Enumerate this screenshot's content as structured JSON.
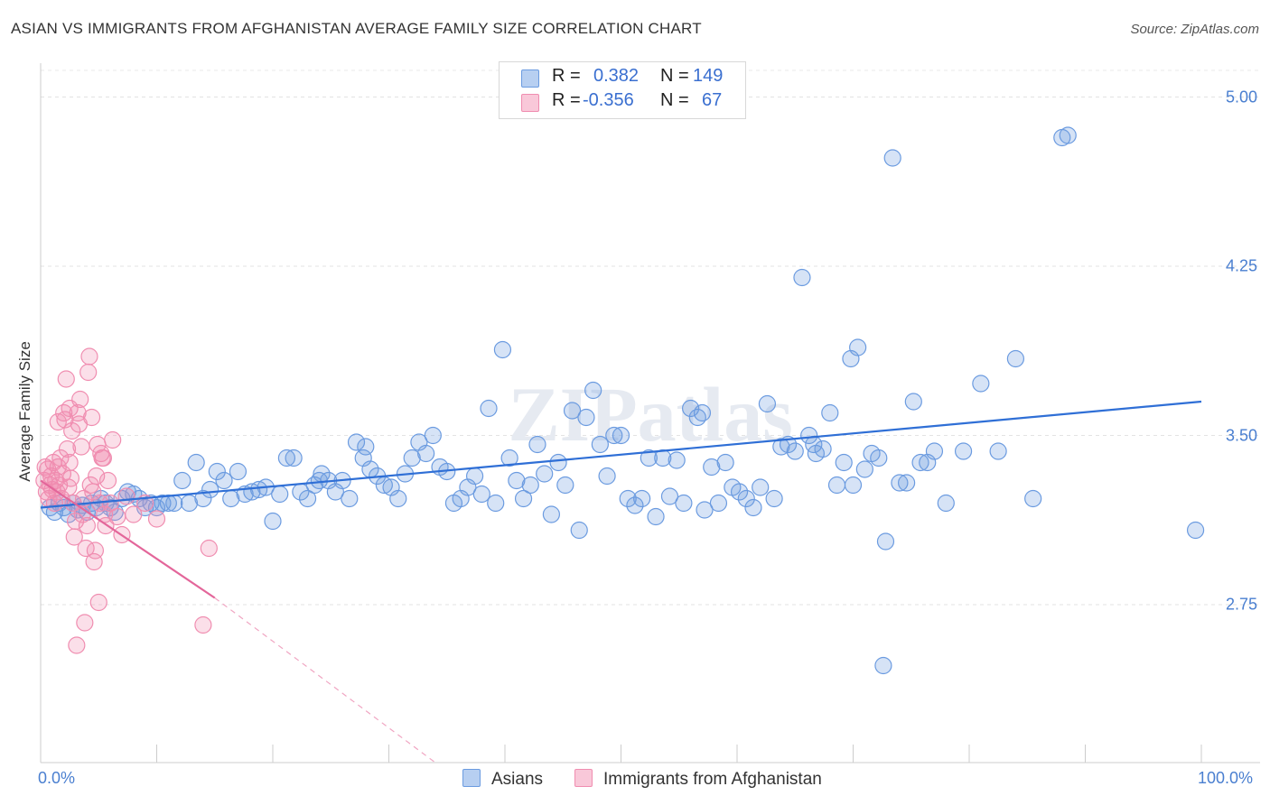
{
  "title": "ASIAN VS IMMIGRANTS FROM AFGHANISTAN AVERAGE FAMILY SIZE CORRELATION CHART",
  "source": "Source: ZipAtlas.com",
  "watermark": "ZIPatlas",
  "chart_data": {
    "type": "scatter",
    "ylabel": "Average Family Size",
    "xlim": [
      0,
      100
    ],
    "ylim": [
      2.05,
      5.15
    ],
    "x_tick_labels": [
      "0.0%",
      "100.0%"
    ],
    "y_ticks": [
      2.75,
      3.5,
      4.25,
      5.0
    ],
    "y_tick_labels": [
      "2.75",
      "3.50",
      "4.25",
      "5.00"
    ],
    "grid": true,
    "legend_position": "bottom",
    "stats": [
      {
        "r_label": "R =",
        "r": "0.382",
        "n_label": "N =",
        "n": "149"
      },
      {
        "r_label": "R =",
        "r": "-0.356",
        "n_label": "N =",
        "n": "67"
      }
    ],
    "series": [
      {
        "name": "Asians",
        "color": "#6b9be0",
        "trend": {
          "x": [
            0,
            100
          ],
          "y": [
            3.18,
            3.65
          ]
        },
        "points": [
          [
            0.8,
            3.18
          ],
          [
            1.2,
            3.16
          ],
          [
            1.6,
            3.2
          ],
          [
            2.0,
            3.18
          ],
          [
            2.4,
            3.15
          ],
          [
            2.8,
            3.2
          ],
          [
            3.2,
            3.17
          ],
          [
            3.6,
            3.19
          ],
          [
            4.0,
            3.16
          ],
          [
            4.4,
            3.2
          ],
          [
            4.8,
            3.18
          ],
          [
            5.2,
            3.22
          ],
          [
            5.6,
            3.2
          ],
          [
            6.0,
            3.18
          ],
          [
            6.4,
            3.16
          ],
          [
            7.0,
            3.22
          ],
          [
            7.5,
            3.25
          ],
          [
            8.0,
            3.24
          ],
          [
            8.5,
            3.22
          ],
          [
            9.0,
            3.18
          ],
          [
            9.5,
            3.2
          ],
          [
            10.0,
            3.18
          ],
          [
            10.5,
            3.2
          ],
          [
            11.0,
            3.2
          ],
          [
            11.5,
            3.2
          ],
          [
            12.2,
            3.3
          ],
          [
            12.8,
            3.2
          ],
          [
            13.4,
            3.38
          ],
          [
            14.0,
            3.22
          ],
          [
            14.6,
            3.26
          ],
          [
            15.2,
            3.34
          ],
          [
            15.8,
            3.3
          ],
          [
            16.4,
            3.22
          ],
          [
            17.0,
            3.34
          ],
          [
            17.6,
            3.24
          ],
          [
            18.2,
            3.25
          ],
          [
            18.8,
            3.26
          ],
          [
            19.4,
            3.27
          ],
          [
            20.0,
            3.12
          ],
          [
            20.6,
            3.24
          ],
          [
            21.2,
            3.4
          ],
          [
            21.8,
            3.4
          ],
          [
            22.4,
            3.25
          ],
          [
            23.0,
            3.22
          ],
          [
            23.6,
            3.28
          ],
          [
            24.2,
            3.33
          ],
          [
            24.8,
            3.3
          ],
          [
            25.4,
            3.25
          ],
          [
            26.0,
            3.3
          ],
          [
            26.6,
            3.22
          ],
          [
            27.2,
            3.47
          ],
          [
            27.8,
            3.4
          ],
          [
            28.4,
            3.35
          ],
          [
            29.0,
            3.32
          ],
          [
            29.6,
            3.28
          ],
          [
            30.2,
            3.27
          ],
          [
            30.8,
            3.22
          ],
          [
            31.4,
            3.33
          ],
          [
            32.0,
            3.4
          ],
          [
            32.6,
            3.47
          ],
          [
            33.2,
            3.42
          ],
          [
            33.8,
            3.5
          ],
          [
            34.4,
            3.36
          ],
          [
            35.0,
            3.34
          ],
          [
            35.6,
            3.2
          ],
          [
            36.2,
            3.22
          ],
          [
            36.8,
            3.27
          ],
          [
            37.4,
            3.32
          ],
          [
            38.0,
            3.24
          ],
          [
            38.6,
            3.62
          ],
          [
            39.2,
            3.2
          ],
          [
            39.8,
            3.88
          ],
          [
            40.4,
            3.4
          ],
          [
            41.0,
            3.3
          ],
          [
            41.6,
            3.22
          ],
          [
            42.2,
            3.28
          ],
          [
            42.8,
            3.46
          ],
          [
            43.4,
            3.33
          ],
          [
            44.0,
            3.15
          ],
          [
            44.6,
            3.38
          ],
          [
            45.2,
            3.28
          ],
          [
            45.8,
            3.61
          ],
          [
            46.4,
            3.08
          ],
          [
            47.0,
            3.58
          ],
          [
            47.6,
            3.7
          ],
          [
            48.2,
            3.46
          ],
          [
            48.8,
            3.32
          ],
          [
            49.4,
            3.5
          ],
          [
            50.0,
            3.5
          ],
          [
            50.6,
            3.22
          ],
          [
            51.2,
            3.19
          ],
          [
            51.8,
            3.22
          ],
          [
            52.4,
            3.4
          ],
          [
            53.0,
            3.14
          ],
          [
            53.6,
            3.4
          ],
          [
            54.2,
            3.23
          ],
          [
            54.8,
            3.39
          ],
          [
            55.4,
            3.2
          ],
          [
            56.0,
            3.62
          ],
          [
            56.6,
            3.58
          ],
          [
            57.2,
            3.17
          ],
          [
            57.8,
            3.36
          ],
          [
            58.4,
            3.2
          ],
          [
            59.0,
            3.38
          ],
          [
            59.6,
            3.27
          ],
          [
            60.2,
            3.25
          ],
          [
            60.8,
            3.22
          ],
          [
            61.4,
            3.18
          ],
          [
            62.0,
            3.27
          ],
          [
            62.6,
            3.64
          ],
          [
            63.2,
            3.22
          ],
          [
            63.8,
            3.45
          ],
          [
            64.4,
            3.46
          ],
          [
            65.0,
            3.43
          ],
          [
            65.6,
            4.2
          ],
          [
            66.2,
            3.5
          ],
          [
            66.8,
            3.42
          ],
          [
            67.4,
            3.44
          ],
          [
            68.0,
            3.6
          ],
          [
            68.6,
            3.28
          ],
          [
            69.2,
            3.38
          ],
          [
            69.8,
            3.84
          ],
          [
            70.4,
            3.89
          ],
          [
            71.0,
            3.35
          ],
          [
            71.6,
            3.42
          ],
          [
            72.2,
            3.4
          ],
          [
            72.8,
            3.03
          ],
          [
            73.4,
            4.73
          ],
          [
            74.0,
            3.29
          ],
          [
            74.6,
            3.29
          ],
          [
            75.2,
            3.65
          ],
          [
            75.8,
            3.38
          ],
          [
            76.4,
            3.38
          ],
          [
            77.0,
            3.43
          ],
          [
            78.0,
            3.2
          ],
          [
            79.5,
            3.43
          ],
          [
            81.0,
            3.73
          ],
          [
            82.5,
            3.43
          ],
          [
            84.0,
            3.84
          ],
          [
            85.5,
            3.22
          ],
          [
            88.0,
            4.82
          ],
          [
            88.5,
            4.83
          ],
          [
            99.5,
            3.08
          ],
          [
            66.6,
            3.46
          ],
          [
            57.0,
            3.6
          ],
          [
            24.0,
            3.3
          ],
          [
            28.0,
            3.45
          ],
          [
            70.0,
            3.28
          ],
          [
            72.6,
            2.48
          ]
        ]
      },
      {
        "name": "Immigrants from Afghanistan",
        "color": "#f08db0",
        "trend": {
          "x": [
            0,
            15
          ],
          "y": [
            3.3,
            2.78
          ]
        },
        "trend_dashed": {
          "x": [
            15,
            34
          ],
          "y": [
            2.78,
            2.05
          ]
        },
        "points": [
          [
            0.3,
            3.3
          ],
          [
            0.5,
            3.25
          ],
          [
            0.6,
            3.35
          ],
          [
            0.7,
            3.22
          ],
          [
            0.8,
            3.28
          ],
          [
            0.9,
            3.32
          ],
          [
            1.0,
            3.26
          ],
          [
            1.1,
            3.38
          ],
          [
            1.2,
            3.2
          ],
          [
            1.3,
            3.3
          ],
          [
            1.4,
            3.25
          ],
          [
            1.5,
            3.36
          ],
          [
            1.6,
            3.28
          ],
          [
            1.7,
            3.4
          ],
          [
            1.8,
            3.22
          ],
          [
            1.9,
            3.33
          ],
          [
            2.0,
            3.6
          ],
          [
            2.1,
            3.57
          ],
          [
            2.2,
            3.75
          ],
          [
            2.3,
            3.44
          ],
          [
            2.4,
            3.27
          ],
          [
            2.5,
            3.38
          ],
          [
            2.6,
            3.31
          ],
          [
            2.7,
            3.52
          ],
          [
            2.8,
            3.2
          ],
          [
            2.9,
            3.05
          ],
          [
            3.0,
            3.12
          ],
          [
            3.1,
            2.57
          ],
          [
            3.2,
            3.6
          ],
          [
            3.3,
            3.55
          ],
          [
            3.4,
            3.66
          ],
          [
            3.5,
            3.45
          ],
          [
            3.6,
            3.15
          ],
          [
            3.7,
            3.22
          ],
          [
            3.8,
            2.67
          ],
          [
            3.9,
            3.0
          ],
          [
            4.0,
            3.1
          ],
          [
            4.1,
            3.78
          ],
          [
            4.2,
            3.85
          ],
          [
            4.3,
            3.28
          ],
          [
            4.4,
            3.58
          ],
          [
            4.5,
            3.25
          ],
          [
            4.6,
            2.94
          ],
          [
            4.7,
            2.99
          ],
          [
            4.8,
            3.32
          ],
          [
            4.9,
            3.46
          ],
          [
            5.0,
            2.76
          ],
          [
            5.1,
            3.2
          ],
          [
            5.2,
            3.42
          ],
          [
            5.3,
            3.4
          ],
          [
            5.4,
            3.4
          ],
          [
            5.5,
            3.15
          ],
          [
            5.6,
            3.1
          ],
          [
            5.8,
            3.3
          ],
          [
            6.0,
            3.2
          ],
          [
            6.2,
            3.48
          ],
          [
            6.6,
            3.14
          ],
          [
            7.0,
            3.06
          ],
          [
            7.4,
            3.23
          ],
          [
            8.0,
            3.15
          ],
          [
            9.0,
            3.2
          ],
          [
            10.0,
            3.13
          ],
          [
            14.0,
            2.66
          ],
          [
            14.5,
            3.0
          ],
          [
            1.5,
            3.56
          ],
          [
            0.4,
            3.36
          ],
          [
            2.5,
            3.62
          ]
        ]
      }
    ]
  }
}
